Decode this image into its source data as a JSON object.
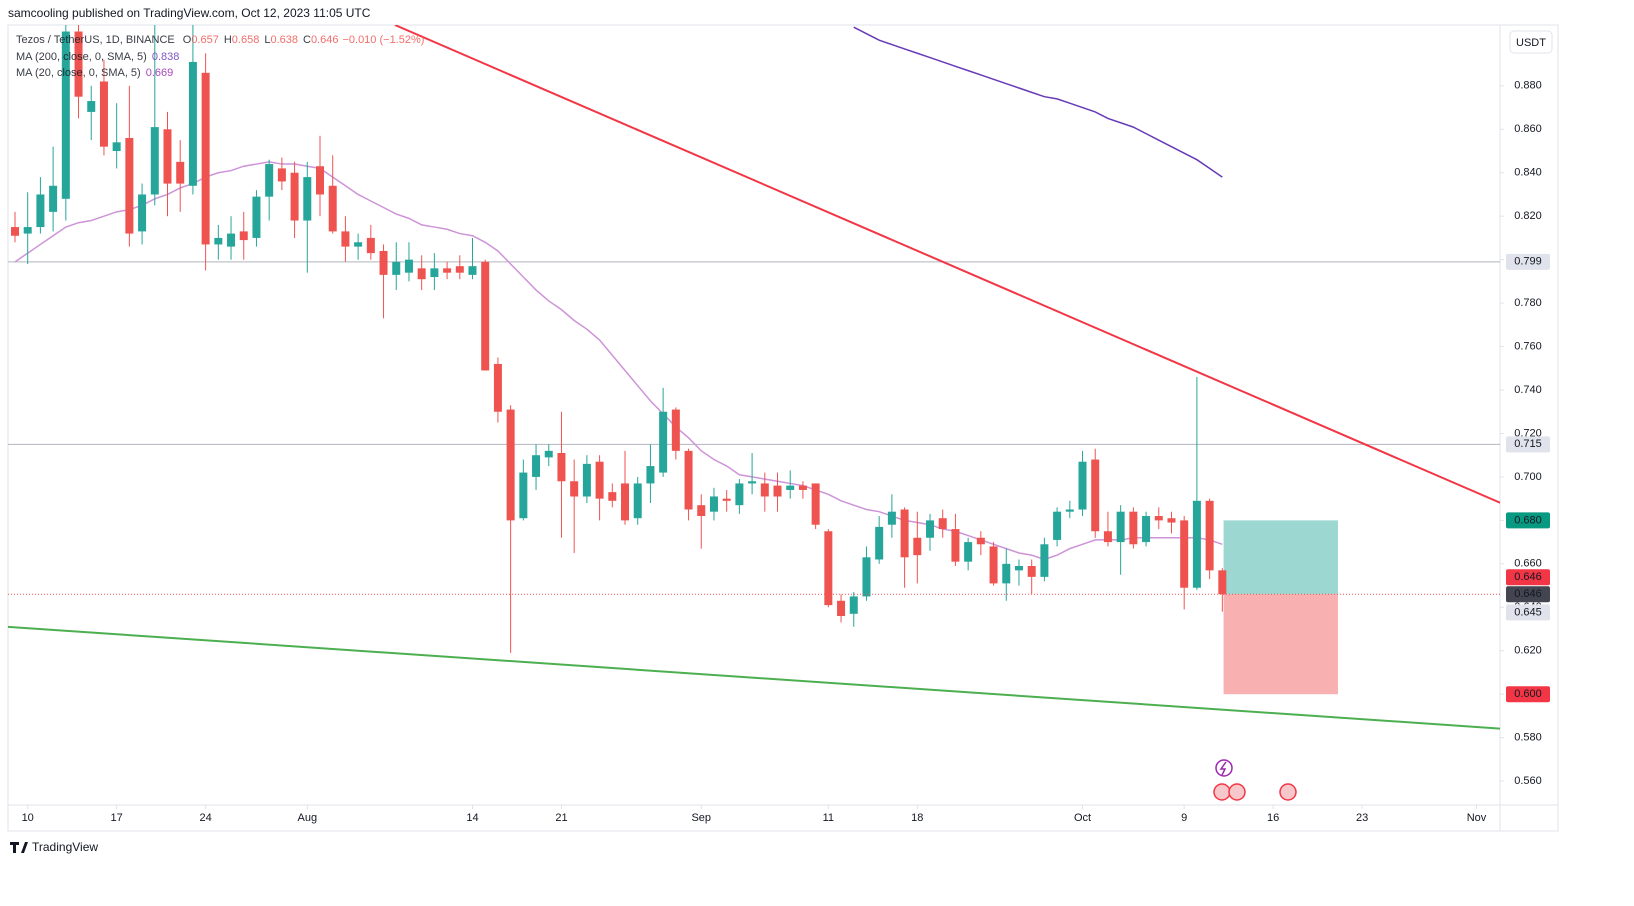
{
  "header": "samcooling published on TradingView.com, Oct 12, 2023 11:05 UTC",
  "legend": {
    "symbol": "Tezos / TetherUS, 1D, BINANCE",
    "ohlc": [
      {
        "key": "O",
        "value": "0.657"
      },
      {
        "key": "H",
        "value": "0.658"
      },
      {
        "key": "L",
        "value": "0.638"
      },
      {
        "key": "C",
        "value": "0.646"
      }
    ],
    "change": "−0.010 (−1.52%)",
    "indicators": [
      {
        "name": "MA (200, close, 0, SMA, 5)",
        "value": "0.838",
        "color": "#673ab7"
      },
      {
        "name": "MA (20, close, 0, SMA, 5)",
        "value": "0.669",
        "color": "#9c27b0"
      }
    ]
  },
  "currency": "USDT",
  "footer": "TradingView",
  "chart_data": {
    "type": "candlestick",
    "xlim": [
      -0.55,
      116.85
    ],
    "ylim": [
      0.549,
      0.908
    ],
    "xticks": [
      {
        "value": 1,
        "label": "10"
      },
      {
        "value": 8,
        "label": "17"
      },
      {
        "value": 15,
        "label": "24"
      },
      {
        "value": 23,
        "label": "Aug"
      },
      {
        "value": 36,
        "label": "14"
      },
      {
        "value": 43,
        "label": "21"
      },
      {
        "value": 54,
        "label": "Sep"
      },
      {
        "value": 64,
        "label": "11"
      },
      {
        "value": 71,
        "label": "18"
      },
      {
        "value": 84,
        "label": "Oct"
      },
      {
        "value": 92,
        "label": "9"
      },
      {
        "value": 99,
        "label": "16"
      },
      {
        "value": 106,
        "label": "23"
      },
      {
        "value": 115,
        "label": "Nov"
      }
    ],
    "yticks": [
      {
        "value": 0.56,
        "label": "0.560"
      },
      {
        "value": 0.58,
        "label": "0.580"
      },
      {
        "value": 0.6,
        "label": "0.600"
      },
      {
        "value": 0.62,
        "label": "0.620"
      },
      {
        "value": 0.64,
        "label": "0.640"
      },
      {
        "value": 0.66,
        "label": "0.660"
      },
      {
        "value": 0.68,
        "label": "0.680"
      },
      {
        "value": 0.7,
        "label": "0.700"
      },
      {
        "value": 0.72,
        "label": "0.720"
      },
      {
        "value": 0.74,
        "label": "0.740"
      },
      {
        "value": 0.76,
        "label": "0.760"
      },
      {
        "value": 0.78,
        "label": "0.780"
      },
      {
        "value": 0.8,
        "label": "0.800"
      },
      {
        "value": 0.82,
        "label": "0.820"
      },
      {
        "value": 0.84,
        "label": "0.840"
      },
      {
        "value": 0.86,
        "label": "0.860"
      },
      {
        "value": 0.88,
        "label": "0.880"
      }
    ],
    "up_color": "#26a69a",
    "down_color": "#ef5350",
    "open": [
      0.815,
      0.812,
      0.815,
      0.822,
      0.828,
      0.905,
      0.868,
      0.882,
      0.85,
      0.856,
      0.813,
      0.83,
      0.86,
      0.845,
      0.834,
      0.886,
      0.807,
      0.806,
      0.813,
      0.81,
      0.829,
      0.842,
      0.84,
      0.818,
      0.843,
      0.834,
      0.813,
      0.806,
      0.81,
      0.804,
      0.793,
      0.794,
      0.796,
      0.792,
      0.796,
      0.797,
      0.793,
      0.799,
      0.752,
      0.731,
      0.681,
      0.7,
      0.709,
      0.711,
      0.698,
      0.691,
      0.707,
      0.693,
      0.697,
      0.681,
      0.697,
      0.702,
      0.731,
      0.712,
      0.687,
      0.684,
      0.69,
      0.687,
      0.697,
      0.697,
      0.696,
      0.694,
      0.696,
      0.697,
      0.675,
      0.643,
      0.637,
      0.645,
      0.662,
      0.678,
      0.685,
      0.672,
      0.672,
      0.681,
      0.676,
      0.661,
      0.672,
      0.668,
      0.651,
      0.657,
      0.659,
      0.654,
      0.671,
      0.684,
      0.685,
      0.708,
      0.675,
      0.67,
      0.684,
      0.67,
      0.682,
      0.681,
      0.68,
      0.649,
      0.689,
      0.657
    ],
    "high": [
      0.822,
      0.831,
      0.838,
      0.852,
      0.925,
      0.925,
      0.88,
      0.892,
      0.872,
      0.88,
      0.835,
      0.92,
      0.868,
      0.855,
      0.91,
      0.895,
      0.816,
      0.82,
      0.822,
      0.832,
      0.846,
      0.847,
      0.845,
      0.845,
      0.857,
      0.848,
      0.82,
      0.812,
      0.816,
      0.807,
      0.808,
      0.808,
      0.802,
      0.803,
      0.799,
      0.802,
      0.81,
      0.8,
      0.755,
      0.733,
      0.708,
      0.715,
      0.715,
      0.73,
      0.708,
      0.71,
      0.71,
      0.697,
      0.712,
      0.7,
      0.715,
      0.741,
      0.732,
      0.713,
      0.692,
      0.695,
      0.694,
      0.699,
      0.711,
      0.702,
      0.702,
      0.703,
      0.698,
      0.697,
      0.676,
      0.646,
      0.647,
      0.668,
      0.682,
      0.692,
      0.686,
      0.684,
      0.683,
      0.685,
      0.683,
      0.672,
      0.675,
      0.67,
      0.667,
      0.662,
      0.662,
      0.672,
      0.686,
      0.689,
      0.712,
      0.713,
      0.684,
      0.687,
      0.686,
      0.684,
      0.686,
      0.684,
      0.682,
      0.746,
      0.69,
      0.658
    ],
    "low": [
      0.808,
      0.798,
      0.812,
      0.813,
      0.818,
      0.865,
      0.855,
      0.848,
      0.842,
      0.806,
      0.807,
      0.825,
      0.82,
      0.822,
      0.83,
      0.795,
      0.8,
      0.8,
      0.8,
      0.806,
      0.818,
      0.832,
      0.81,
      0.794,
      0.82,
      0.812,
      0.799,
      0.8,
      0.8,
      0.773,
      0.786,
      0.79,
      0.786,
      0.786,
      0.791,
      0.791,
      0.791,
      0.749,
      0.725,
      0.619,
      0.68,
      0.694,
      0.705,
      0.672,
      0.665,
      0.688,
      0.68,
      0.686,
      0.678,
      0.678,
      0.688,
      0.7,
      0.708,
      0.68,
      0.667,
      0.68,
      0.684,
      0.683,
      0.692,
      0.684,
      0.684,
      0.69,
      0.69,
      0.676,
      0.64,
      0.633,
      0.631,
      0.643,
      0.66,
      0.672,
      0.649,
      0.651,
      0.666,
      0.672,
      0.659,
      0.657,
      0.664,
      0.65,
      0.643,
      0.65,
      0.646,
      0.652,
      0.668,
      0.681,
      0.682,
      0.672,
      0.668,
      0.655,
      0.667,
      0.668,
      0.676,
      0.674,
      0.639,
      0.648,
      0.653,
      0.638
    ],
    "close": [
      0.811,
      0.815,
      0.83,
      0.834,
      0.905,
      0.875,
      0.873,
      0.852,
      0.854,
      0.812,
      0.83,
      0.861,
      0.835,
      0.835,
      0.891,
      0.807,
      0.81,
      0.812,
      0.809,
      0.829,
      0.844,
      0.836,
      0.818,
      0.838,
      0.83,
      0.813,
      0.806,
      0.808,
      0.803,
      0.793,
      0.799,
      0.8,
      0.791,
      0.796,
      0.794,
      0.794,
      0.797,
      0.749,
      0.73,
      0.68,
      0.702,
      0.71,
      0.712,
      0.698,
      0.691,
      0.706,
      0.69,
      0.689,
      0.68,
      0.697,
      0.705,
      0.73,
      0.712,
      0.685,
      0.682,
      0.691,
      0.689,
      0.697,
      0.698,
      0.691,
      0.691,
      0.696,
      0.694,
      0.678,
      0.641,
      0.636,
      0.645,
      0.663,
      0.677,
      0.684,
      0.663,
      0.664,
      0.68,
      0.676,
      0.661,
      0.67,
      0.669,
      0.651,
      0.66,
      0.659,
      0.654,
      0.669,
      0.684,
      0.685,
      0.707,
      0.675,
      0.67,
      0.684,
      0.669,
      0.682,
      0.68,
      0.679,
      0.649,
      0.689,
      0.657,
      0.646
    ],
    "lines": [
      {
        "color": "#673ab7",
        "values": [
          null,
          null,
          null,
          null,
          null,
          null,
          null,
          null,
          null,
          null,
          null,
          null,
          null,
          null,
          null,
          null,
          null,
          null,
          null,
          null,
          null,
          null,
          null,
          null,
          null,
          null,
          null,
          null,
          null,
          null,
          null,
          null,
          null,
          null,
          null,
          null,
          null,
          null,
          null,
          null,
          null,
          null,
          null,
          null,
          null,
          null,
          null,
          null,
          null,
          null,
          null,
          null,
          null,
          null,
          null,
          null,
          null,
          null,
          null,
          null,
          null,
          null,
          null,
          null,
          null,
          null,
          0.907,
          0.904,
          0.901,
          0.899,
          0.897,
          0.895,
          0.893,
          0.891,
          0.889,
          0.887,
          0.885,
          0.883,
          0.881,
          0.879,
          0.877,
          0.875,
          0.874,
          0.872,
          0.87,
          0.868,
          0.865,
          0.863,
          0.861,
          0.858,
          0.855,
          0.852,
          0.849,
          0.846,
          0.842,
          0.838
        ]
      },
      {
        "color": "#ce93d8",
        "values": [
          0.799,
          0.803,
          0.807,
          0.811,
          0.815,
          0.817,
          0.818,
          0.82,
          0.822,
          0.823,
          0.825,
          0.828,
          0.83,
          0.833,
          0.835,
          0.838,
          0.84,
          0.841,
          0.843,
          0.844,
          0.845,
          0.844,
          0.844,
          0.843,
          0.842,
          0.838,
          0.834,
          0.83,
          0.827,
          0.824,
          0.821,
          0.819,
          0.816,
          0.815,
          0.814,
          0.812,
          0.811,
          0.808,
          0.804,
          0.798,
          0.792,
          0.786,
          0.781,
          0.777,
          0.772,
          0.768,
          0.763,
          0.756,
          0.749,
          0.742,
          0.735,
          0.729,
          0.723,
          0.718,
          0.712,
          0.708,
          0.705,
          0.701,
          0.7,
          0.699,
          0.698,
          0.697,
          0.696,
          0.694,
          0.692,
          0.689,
          0.687,
          0.685,
          0.684,
          0.682,
          0.68,
          0.679,
          0.678,
          0.676,
          0.675,
          0.673,
          0.671,
          0.669,
          0.667,
          0.665,
          0.664,
          0.662,
          0.664,
          0.667,
          0.669,
          0.671,
          0.671,
          0.671,
          0.672,
          0.672,
          0.672,
          0.672,
          0.672,
          0.672,
          0.671,
          0.669
        ]
      }
    ],
    "trendlines": [
      {
        "color": "#f23645",
        "x": [
          29.9,
          117.3
        ],
        "y": [
          0.908,
          0.687
        ]
      },
      {
        "color": "#4caf50",
        "x": [
          -0.55,
          117.3
        ],
        "y": [
          0.631,
          0.584
        ]
      }
    ],
    "levels": [
      {
        "value": 0.799,
        "label": "0.799"
      },
      {
        "value": 0.715,
        "label": "0.715"
      }
    ],
    "position": {
      "x": [
        95.1,
        104.1
      ],
      "entry": 0.646,
      "target": 0.68,
      "stop": 0.6
    },
    "price_tags": [
      {
        "value": 0.68,
        "label": "0.680",
        "color": "#089981"
      },
      {
        "value": 0.646,
        "label": "0.646",
        "color": "#f23645"
      },
      {
        "value": 0.646,
        "label": "0.646",
        "color": "#434651"
      },
      {
        "value": 0.645,
        "label": "0.645",
        "color": "#e0e3eb"
      },
      {
        "value": 0.6,
        "label": "0.600",
        "color": "#f23645"
      }
    ]
  }
}
